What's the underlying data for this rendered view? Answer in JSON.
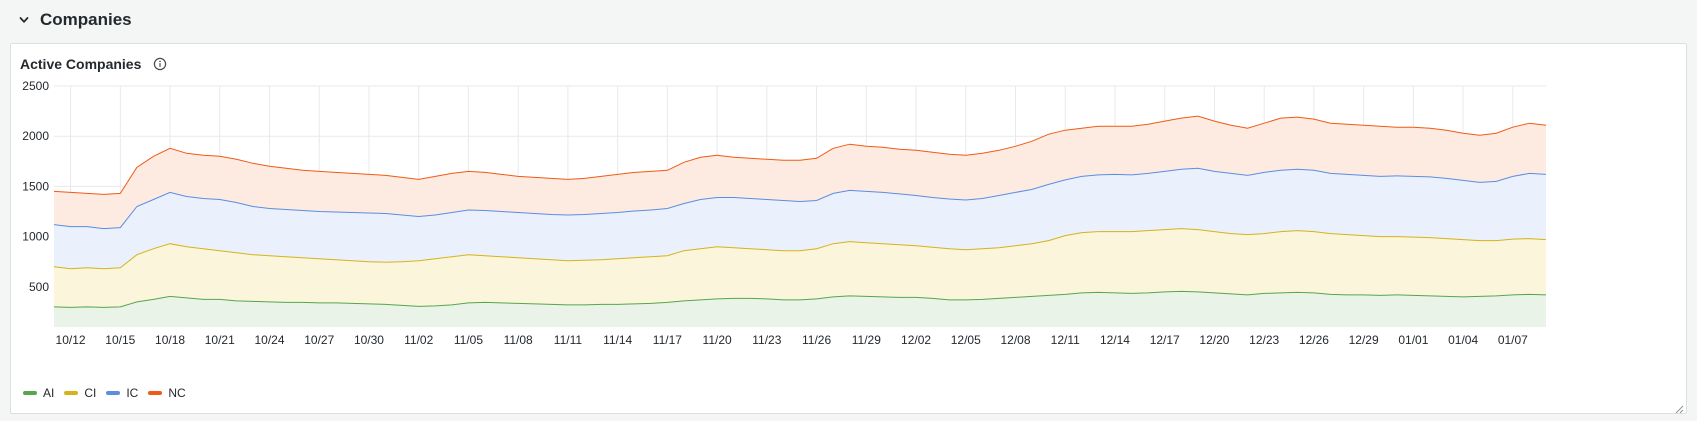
{
  "row": {
    "title": "Companies",
    "toggle_icon": "chevron-down-icon"
  },
  "panel": {
    "title": "Active Companies",
    "info_icon": "info-icon"
  },
  "chart_data": {
    "type": "area",
    "stacked": true,
    "title": "Active Companies",
    "xlabel": "",
    "ylabel": "",
    "ylim": [
      100,
      2500
    ],
    "yticks": [
      500,
      1000,
      1500,
      2000,
      2500
    ],
    "grid": true,
    "legend_position": "bottom-left",
    "x_tick_labels": [
      "10/12",
      "10/15",
      "10/18",
      "10/21",
      "10/24",
      "10/27",
      "10/30",
      "11/02",
      "11/05",
      "11/08",
      "11/11",
      "11/14",
      "11/17",
      "11/20",
      "11/23",
      "11/26",
      "11/29",
      "12/02",
      "12/05",
      "12/08",
      "12/11",
      "12/14",
      "12/17",
      "12/20",
      "12/23",
      "12/26",
      "12/29",
      "01/01",
      "01/04",
      "01/07"
    ],
    "x": [
      "2024-10-11",
      "2024-10-12",
      "2024-10-13",
      "2024-10-14",
      "2024-10-15",
      "2024-10-16",
      "2024-10-17",
      "2024-10-18",
      "2024-10-19",
      "2024-10-20",
      "2024-10-21",
      "2024-10-22",
      "2024-10-23",
      "2024-10-24",
      "2024-10-25",
      "2024-10-26",
      "2024-10-27",
      "2024-10-28",
      "2024-10-29",
      "2024-10-30",
      "2024-10-31",
      "2024-11-01",
      "2024-11-02",
      "2024-11-03",
      "2024-11-04",
      "2024-11-05",
      "2024-11-06",
      "2024-11-07",
      "2024-11-08",
      "2024-11-09",
      "2024-11-10",
      "2024-11-11",
      "2024-11-12",
      "2024-11-13",
      "2024-11-14",
      "2024-11-15",
      "2024-11-16",
      "2024-11-17",
      "2024-11-18",
      "2024-11-19",
      "2024-11-20",
      "2024-11-21",
      "2024-11-22",
      "2024-11-23",
      "2024-11-24",
      "2024-11-25",
      "2024-11-26",
      "2024-11-27",
      "2024-11-28",
      "2024-11-29",
      "2024-11-30",
      "2024-12-01",
      "2024-12-02",
      "2024-12-03",
      "2024-12-04",
      "2024-12-05",
      "2024-12-06",
      "2024-12-07",
      "2024-12-08",
      "2024-12-09",
      "2024-12-10",
      "2024-12-11",
      "2024-12-12",
      "2024-12-13",
      "2024-12-14",
      "2024-12-15",
      "2024-12-16",
      "2024-12-17",
      "2024-12-18",
      "2024-12-19",
      "2024-12-20",
      "2024-12-21",
      "2024-12-22",
      "2024-12-23",
      "2024-12-24",
      "2024-12-25",
      "2024-12-26",
      "2024-12-27",
      "2024-12-28",
      "2024-12-29",
      "2024-12-30",
      "2024-12-31",
      "2025-01-01",
      "2025-01-02",
      "2025-01-03",
      "2025-01-04",
      "2025-01-05",
      "2025-01-06",
      "2025-01-07",
      "2025-01-08",
      "2025-01-09"
    ],
    "series": [
      {
        "name": "AI",
        "color": "#56a64b",
        "fill": "#eaf3e8",
        "values": [
          300,
          295,
          300,
          295,
          300,
          350,
          375,
          405,
          390,
          375,
          375,
          360,
          355,
          350,
          345,
          345,
          340,
          340,
          335,
          330,
          325,
          315,
          305,
          310,
          320,
          340,
          345,
          340,
          335,
          330,
          325,
          320,
          320,
          325,
          325,
          330,
          335,
          345,
          360,
          370,
          380,
          385,
          385,
          380,
          370,
          370,
          380,
          400,
          410,
          405,
          400,
          395,
          395,
          385,
          370,
          370,
          375,
          385,
          395,
          405,
          415,
          425,
          440,
          445,
          440,
          435,
          440,
          450,
          455,
          450,
          440,
          430,
          420,
          435,
          440,
          445,
          440,
          425,
          420,
          420,
          415,
          420,
          415,
          410,
          405,
          400,
          405,
          410,
          420,
          425,
          420
        ]
      },
      {
        "name": "CI",
        "color": "#d6b319",
        "fill": "#fbf5dc",
        "values": [
          700,
          680,
          690,
          680,
          690,
          820,
          880,
          930,
          900,
          880,
          860,
          840,
          820,
          810,
          800,
          790,
          780,
          770,
          760,
          750,
          745,
          750,
          760,
          780,
          800,
          820,
          810,
          800,
          790,
          780,
          770,
          760,
          765,
          770,
          780,
          790,
          800,
          810,
          860,
          880,
          900,
          890,
          880,
          870,
          860,
          860,
          880,
          930,
          950,
          940,
          930,
          920,
          910,
          895,
          880,
          870,
          880,
          890,
          910,
          930,
          960,
          1010,
          1040,
          1050,
          1050,
          1050,
          1060,
          1070,
          1080,
          1070,
          1050,
          1030,
          1020,
          1030,
          1050,
          1060,
          1050,
          1030,
          1020,
          1010,
          1000,
          1000,
          995,
          990,
          980,
          970,
          960,
          960,
          975,
          980,
          970
        ]
      },
      {
        "name": "IC",
        "color": "#5b8de0",
        "fill": "#eaf0fc",
        "values": [
          1120,
          1100,
          1100,
          1080,
          1090,
          1300,
          1370,
          1440,
          1400,
          1380,
          1370,
          1340,
          1300,
          1280,
          1270,
          1260,
          1250,
          1245,
          1240,
          1235,
          1230,
          1215,
          1200,
          1215,
          1240,
          1265,
          1260,
          1250,
          1240,
          1230,
          1220,
          1215,
          1220,
          1230,
          1240,
          1255,
          1265,
          1280,
          1330,
          1370,
          1390,
          1390,
          1380,
          1370,
          1360,
          1350,
          1360,
          1430,
          1460,
          1450,
          1440,
          1425,
          1410,
          1390,
          1375,
          1365,
          1380,
          1410,
          1440,
          1470,
          1520,
          1565,
          1600,
          1615,
          1620,
          1615,
          1630,
          1650,
          1670,
          1680,
          1650,
          1630,
          1610,
          1640,
          1660,
          1670,
          1660,
          1630,
          1620,
          1610,
          1600,
          1605,
          1600,
          1595,
          1580,
          1560,
          1540,
          1550,
          1600,
          1630,
          1620
        ]
      },
      {
        "name": "NC",
        "color": "#f05a14",
        "fill": "#fdebe2",
        "values": [
          1450,
          1440,
          1430,
          1420,
          1430,
          1690,
          1800,
          1880,
          1830,
          1810,
          1800,
          1770,
          1730,
          1700,
          1680,
          1660,
          1650,
          1640,
          1630,
          1620,
          1610,
          1590,
          1570,
          1600,
          1630,
          1650,
          1640,
          1620,
          1600,
          1590,
          1580,
          1570,
          1580,
          1600,
          1620,
          1640,
          1650,
          1660,
          1740,
          1790,
          1810,
          1790,
          1780,
          1770,
          1760,
          1760,
          1780,
          1880,
          1920,
          1900,
          1890,
          1870,
          1860,
          1840,
          1820,
          1810,
          1830,
          1860,
          1900,
          1950,
          2020,
          2060,
          2080,
          2100,
          2100,
          2100,
          2120,
          2150,
          2180,
          2200,
          2150,
          2110,
          2080,
          2130,
          2180,
          2190,
          2170,
          2130,
          2120,
          2110,
          2100,
          2090,
          2090,
          2080,
          2060,
          2030,
          2010,
          2030,
          2090,
          2130,
          2110
        ]
      }
    ]
  }
}
